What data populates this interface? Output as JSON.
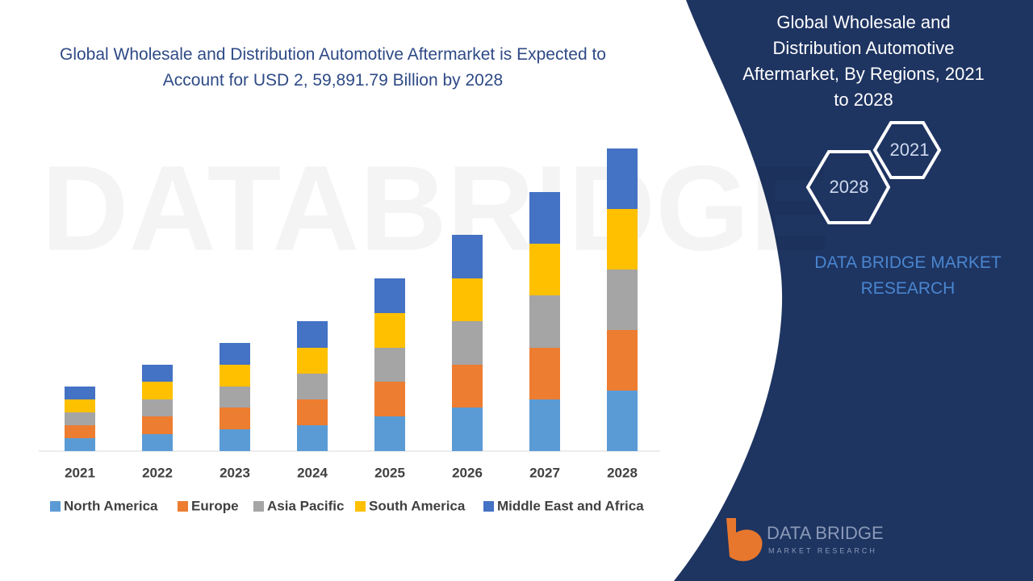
{
  "chart_data": {
    "type": "stacked_bar",
    "title": "Global Wholesale and Distribution Automotive Aftermarket is Expected to Account for USD 2, 59,891.79 Billion by 2028",
    "categories": [
      "2021",
      "2022",
      "2023",
      "2024",
      "2025",
      "2026",
      "2027",
      "2028"
    ],
    "series": [
      {
        "name": "North America",
        "color": "#5b9bd5",
        "values": [
          16,
          21,
          27,
          32,
          43,
          54,
          64,
          75
        ]
      },
      {
        "name": "Europe",
        "color": "#ed7d31",
        "values": [
          16,
          22,
          27,
          32,
          43,
          53,
          64,
          75
        ]
      },
      {
        "name": "Asia Pacific",
        "color": "#a5a5a5",
        "values": [
          16,
          21,
          26,
          32,
          42,
          54,
          65,
          75
        ]
      },
      {
        "name": "South America",
        "color": "#ffc000",
        "values": [
          16,
          22,
          27,
          32,
          43,
          53,
          64,
          75
        ]
      },
      {
        "name": "Middle East and Africa",
        "color": "#4472c4",
        "values": [
          16,
          21,
          27,
          33,
          43,
          54,
          64,
          75
        ]
      }
    ]
  },
  "panel": {
    "title": "Global Wholesale and Distribution Automotive Aftermarket, By Regions, 2021 to 2028",
    "hex_labels": [
      "2021",
      "2028"
    ],
    "brand": "DATA BRIDGE MARKET RESEARCH",
    "logo": {
      "name": "DATA BRIDGE",
      "tagline": "MARKET RESEARCH"
    }
  }
}
